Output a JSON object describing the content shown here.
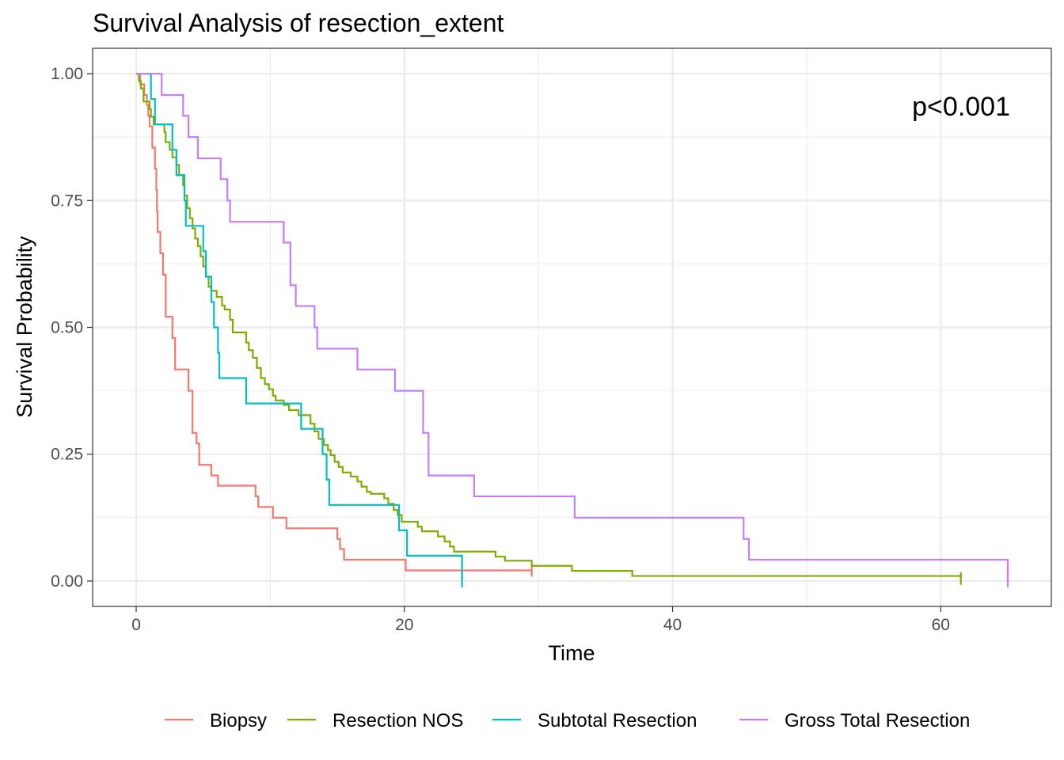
{
  "chart_data": {
    "type": "line",
    "subtype": "kaplan-meier-step",
    "title": "Survival Analysis of resection_extent",
    "xlabel": "Time",
    "ylabel": "Survival Probability",
    "xlim": [
      -3.25,
      68.25
    ],
    "ylim": [
      -0.05,
      1.05
    ],
    "x_major_ticks": [
      0,
      20,
      40,
      60
    ],
    "x_minor_ticks": [
      10,
      30,
      50
    ],
    "y_major_ticks": [
      0.0,
      0.25,
      0.5,
      0.75,
      1.0
    ],
    "y_minor_ticks": [
      0.125,
      0.375,
      0.625,
      0.875
    ],
    "x_tick_labels": [
      "0",
      "20",
      "40",
      "60"
    ],
    "y_tick_labels": [
      "0.00",
      "0.25",
      "0.50",
      "0.75",
      "1.00"
    ],
    "grid": true,
    "legend_position": "bottom",
    "annotation": "p<0.001",
    "series": [
      {
        "name": "Biopsy",
        "color": "#F8766D",
        "points": [
          [
            0,
            1.0
          ],
          [
            0.3,
            0.979
          ],
          [
            0.6,
            0.958
          ],
          [
            0.8,
            0.938
          ],
          [
            0.9,
            0.917
          ],
          [
            1.0,
            0.896
          ],
          [
            1.2,
            0.854
          ],
          [
            1.4,
            0.813
          ],
          [
            1.5,
            0.771
          ],
          [
            1.55,
            0.729
          ],
          [
            1.6,
            0.688
          ],
          [
            1.8,
            0.646
          ],
          [
            2.0,
            0.604
          ],
          [
            2.2,
            0.521
          ],
          [
            2.7,
            0.479
          ],
          [
            2.9,
            0.417
          ],
          [
            3.9,
            0.375
          ],
          [
            4.2,
            0.292
          ],
          [
            4.5,
            0.271
          ],
          [
            4.7,
            0.229
          ],
          [
            5.6,
            0.208
          ],
          [
            6.1,
            0.188
          ],
          [
            8.9,
            0.167
          ],
          [
            9.1,
            0.146
          ],
          [
            10.2,
            0.125
          ],
          [
            11.2,
            0.104
          ],
          [
            15.0,
            0.083
          ],
          [
            15.2,
            0.063
          ],
          [
            15.5,
            0.042
          ],
          [
            20.1,
            0.021
          ],
          [
            29.5,
            0.021
          ]
        ],
        "end_x": 29.5
      },
      {
        "name": "Resection NOS",
        "color": "#7CAE00",
        "points": [
          [
            0,
            1.0
          ],
          [
            0.2,
            0.986
          ],
          [
            0.35,
            0.971
          ],
          [
            0.55,
            0.945
          ],
          [
            1.0,
            0.93
          ],
          [
            1.1,
            0.915
          ],
          [
            1.3,
            0.9
          ],
          [
            2.1,
            0.885
          ],
          [
            2.2,
            0.865
          ],
          [
            2.5,
            0.85
          ],
          [
            2.7,
            0.835
          ],
          [
            3.0,
            0.82
          ],
          [
            3.2,
            0.8
          ],
          [
            3.5,
            0.78
          ],
          [
            3.6,
            0.76
          ],
          [
            3.8,
            0.735
          ],
          [
            4.0,
            0.715
          ],
          [
            4.2,
            0.695
          ],
          [
            4.4,
            0.675
          ],
          [
            4.6,
            0.66
          ],
          [
            4.8,
            0.64
          ],
          [
            5.0,
            0.62
          ],
          [
            5.2,
            0.6
          ],
          [
            5.4,
            0.58
          ],
          [
            5.6,
            0.572
          ],
          [
            6.0,
            0.56
          ],
          [
            6.4,
            0.543
          ],
          [
            6.6,
            0.535
          ],
          [
            7.0,
            0.515
          ],
          [
            7.2,
            0.49
          ],
          [
            8.2,
            0.47
          ],
          [
            8.4,
            0.455
          ],
          [
            8.7,
            0.44
          ],
          [
            9.0,
            0.42
          ],
          [
            9.3,
            0.4
          ],
          [
            9.6,
            0.388
          ],
          [
            9.9,
            0.378
          ],
          [
            10.2,
            0.365
          ],
          [
            10.4,
            0.356
          ],
          [
            11.0,
            0.347
          ],
          [
            11.4,
            0.337
          ],
          [
            12.1,
            0.327
          ],
          [
            13.0,
            0.31
          ],
          [
            13.3,
            0.295
          ],
          [
            13.6,
            0.28
          ],
          [
            14.0,
            0.268
          ],
          [
            14.3,
            0.258
          ],
          [
            14.5,
            0.248
          ],
          [
            14.8,
            0.235
          ],
          [
            15.1,
            0.225
          ],
          [
            15.4,
            0.214
          ],
          [
            16.0,
            0.206
          ],
          [
            16.5,
            0.196
          ],
          [
            16.8,
            0.186
          ],
          [
            17.2,
            0.176
          ],
          [
            17.5,
            0.172
          ],
          [
            18.5,
            0.163
          ],
          [
            18.8,
            0.152
          ],
          [
            19.2,
            0.14
          ],
          [
            19.5,
            0.13
          ],
          [
            19.8,
            0.117
          ],
          [
            21.0,
            0.107
          ],
          [
            21.3,
            0.098
          ],
          [
            22.5,
            0.088
          ],
          [
            23.0,
            0.078
          ],
          [
            23.4,
            0.068
          ],
          [
            23.7,
            0.058
          ],
          [
            26.8,
            0.048
          ],
          [
            27.5,
            0.04
          ],
          [
            29.5,
            0.03
          ],
          [
            32.5,
            0.02
          ],
          [
            37.0,
            0.01
          ],
          [
            61.5,
            0.005
          ]
        ],
        "end_x": 61.5
      },
      {
        "name": "Subtotal Resection",
        "color": "#00BFC4",
        "points": [
          [
            0,
            1.0
          ],
          [
            1.1,
            0.95
          ],
          [
            1.4,
            0.9
          ],
          [
            2.7,
            0.85
          ],
          [
            3.0,
            0.8
          ],
          [
            3.6,
            0.75
          ],
          [
            3.7,
            0.7
          ],
          [
            5.0,
            0.65
          ],
          [
            5.2,
            0.6
          ],
          [
            5.6,
            0.55
          ],
          [
            5.8,
            0.5
          ],
          [
            6.1,
            0.45
          ],
          [
            6.2,
            0.4
          ],
          [
            8.2,
            0.35
          ],
          [
            12.3,
            0.3
          ],
          [
            13.9,
            0.25
          ],
          [
            14.2,
            0.2
          ],
          [
            14.4,
            0.15
          ],
          [
            19.6,
            0.1
          ],
          [
            20.2,
            0.05
          ],
          [
            24.3,
            0.0
          ]
        ],
        "end_x": 24.3
      },
      {
        "name": "Gross Total Resection",
        "color": "#C77CFF",
        "points": [
          [
            0,
            1.0
          ],
          [
            1.9,
            0.958
          ],
          [
            3.5,
            0.917
          ],
          [
            3.9,
            0.875
          ],
          [
            4.6,
            0.833
          ],
          [
            6.3,
            0.792
          ],
          [
            6.8,
            0.75
          ],
          [
            7.0,
            0.708
          ],
          [
            11.0,
            0.667
          ],
          [
            11.5,
            0.583
          ],
          [
            11.9,
            0.542
          ],
          [
            13.3,
            0.5
          ],
          [
            13.5,
            0.458
          ],
          [
            16.5,
            0.417
          ],
          [
            19.3,
            0.375
          ],
          [
            21.4,
            0.292
          ],
          [
            21.8,
            0.208
          ],
          [
            25.2,
            0.167
          ],
          [
            32.7,
            0.125
          ],
          [
            45.3,
            0.083
          ],
          [
            45.7,
            0.042
          ],
          [
            65.0,
            0.0
          ]
        ],
        "end_x": 65.0
      }
    ]
  }
}
